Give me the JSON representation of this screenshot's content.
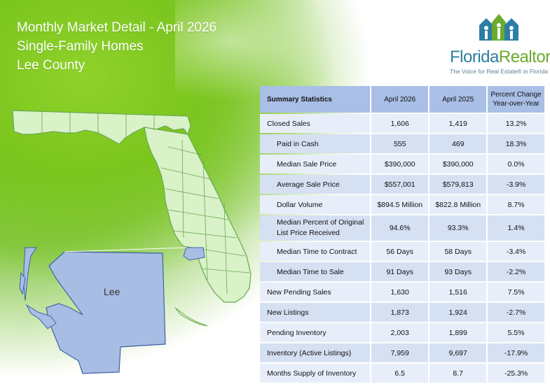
{
  "header": {
    "title": "Monthly Market Detail - April 2026",
    "subtitle": "Single-Family Homes",
    "region": "Lee County"
  },
  "logo": {
    "name_part1": "Florida",
    "name_part2": "Realtors",
    "registered": "®",
    "tagline": "The Voice for Real Estate® in Florida"
  },
  "map": {
    "county_label": "Lee",
    "colors": {
      "state_fill": "#d9f2c8",
      "state_stroke": "#6aa84f",
      "county_fill": "#a7bde3",
      "county_stroke": "#3e63a8"
    }
  },
  "table": {
    "headers": [
      "Summary Statistics",
      "April 2026",
      "April 2025",
      "Percent Change Year-over-Year"
    ],
    "rows": [
      {
        "label": "Closed Sales",
        "indent": false,
        "v2026": "1,606",
        "v2025": "1,419",
        "pct": "13.2%"
      },
      {
        "label": "Paid in Cash",
        "indent": true,
        "v2026": "555",
        "v2025": "469",
        "pct": "18.3%"
      },
      {
        "label": "Median Sale Price",
        "indent": true,
        "v2026": "$390,000",
        "v2025": "$390,000",
        "pct": "0.0%"
      },
      {
        "label": "Average Sale Price",
        "indent": true,
        "v2026": "$557,001",
        "v2025": "$579,813",
        "pct": "-3.9%"
      },
      {
        "label": "Dollar Volume",
        "indent": true,
        "v2026": "$894.5 Million",
        "v2025": "$822.8 Million",
        "pct": "8.7%"
      },
      {
        "label": "Median Percent of Original List Price Received",
        "indent": true,
        "v2026": "94.6%",
        "v2025": "93.3%",
        "pct": "1.4%"
      },
      {
        "label": "Median Time to Contract",
        "indent": true,
        "v2026": "56 Days",
        "v2025": "58 Days",
        "pct": "-3.4%"
      },
      {
        "label": "Median Time to Sale",
        "indent": true,
        "v2026": "91 Days",
        "v2025": "93 Days",
        "pct": "-2.2%"
      },
      {
        "label": "New Pending Sales",
        "indent": false,
        "v2026": "1,630",
        "v2025": "1,516",
        "pct": "7.5%"
      },
      {
        "label": "New Listings",
        "indent": false,
        "v2026": "1,873",
        "v2025": "1,924",
        "pct": "-2.7%"
      },
      {
        "label": "Pending Inventory",
        "indent": false,
        "v2026": "2,003",
        "v2025": "1,899",
        "pct": "5.5%"
      },
      {
        "label": "Inventory (Active Listings)",
        "indent": false,
        "v2026": "7,959",
        "v2025": "9,697",
        "pct": "-17.9%"
      },
      {
        "label": "Months Supply of Inventory",
        "indent": false,
        "v2026": "6.5",
        "v2025": "8.7",
        "pct": "-25.3%"
      }
    ]
  }
}
